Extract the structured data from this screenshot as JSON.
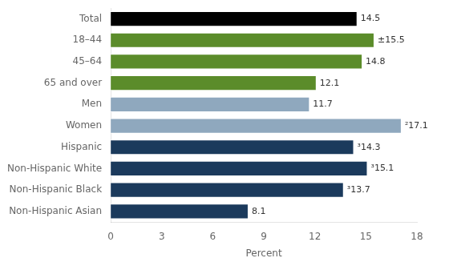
{
  "chart_data": {
    "type": "bar",
    "orientation": "horizontal",
    "categories": [
      "Total",
      "18–44",
      "45–64",
      "65 and over",
      "Men",
      "Women",
      "Hispanic",
      "Non-Hispanic White",
      "Non-Hispanic Black",
      "Non-Hispanic Asian"
    ],
    "values": [
      14.5,
      15.5,
      14.8,
      12.1,
      11.7,
      17.1,
      14.3,
      15.1,
      13.7,
      8.1
    ],
    "value_labels": [
      "14.5",
      "±15.5",
      "14.8",
      "12.1",
      "11.7",
      "²17.1",
      "³14.3",
      "³15.1",
      "³13.7",
      "8.1"
    ],
    "data_labels": true,
    "colors": [
      "#000000",
      "#5b8c2a",
      "#5b8c2a",
      "#5b8c2a",
      "#8fa8be",
      "#8fa8be",
      "#1b3a5c",
      "#1b3a5c",
      "#1b3a5c",
      "#1b3a5c"
    ],
    "xlabel": "Percent",
    "xlim": [
      0,
      18
    ],
    "xticks": [
      0,
      3,
      6,
      9,
      12,
      15,
      18
    ],
    "grid": false
  }
}
